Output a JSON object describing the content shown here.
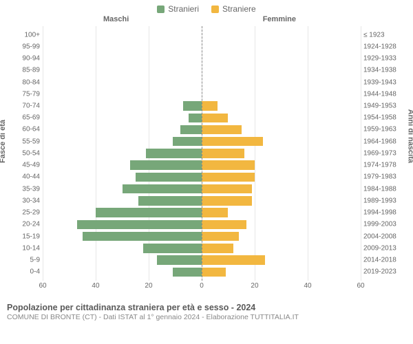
{
  "type": "population-pyramid",
  "legend": [
    {
      "label": "Stranieri",
      "color": "#77a779"
    },
    {
      "label": "Straniere",
      "color": "#f2b740"
    }
  ],
  "colors": {
    "male_bar": "#77a779",
    "female_bar": "#f2b740",
    "grid": "#e6e6e6",
    "center_axis": "#888888",
    "background": "#ffffff",
    "text": "#666666"
  },
  "section_headers": {
    "left": "Maschi",
    "right": "Femmine"
  },
  "y_axis_left_title": "Fasce di età",
  "y_axis_right_title": "Anni di nascita",
  "x_axis": {
    "max": 60,
    "ticks": [
      60,
      40,
      20,
      0,
      20,
      40,
      60
    ]
  },
  "age_groups": [
    {
      "age": "100+",
      "birth": "≤ 1923",
      "m": 0,
      "f": 0
    },
    {
      "age": "95-99",
      "birth": "1924-1928",
      "m": 0,
      "f": 0
    },
    {
      "age": "90-94",
      "birth": "1929-1933",
      "m": 0,
      "f": 0
    },
    {
      "age": "85-89",
      "birth": "1934-1938",
      "m": 0,
      "f": 0
    },
    {
      "age": "80-84",
      "birth": "1939-1943",
      "m": 0,
      "f": 0
    },
    {
      "age": "75-79",
      "birth": "1944-1948",
      "m": 0,
      "f": 0
    },
    {
      "age": "70-74",
      "birth": "1949-1953",
      "m": 7,
      "f": 6
    },
    {
      "age": "65-69",
      "birth": "1954-1958",
      "m": 5,
      "f": 10
    },
    {
      "age": "60-64",
      "birth": "1959-1963",
      "m": 8,
      "f": 15
    },
    {
      "age": "55-59",
      "birth": "1964-1968",
      "m": 11,
      "f": 23
    },
    {
      "age": "50-54",
      "birth": "1969-1973",
      "m": 21,
      "f": 16
    },
    {
      "age": "45-49",
      "birth": "1974-1978",
      "m": 27,
      "f": 20
    },
    {
      "age": "40-44",
      "birth": "1979-1983",
      "m": 25,
      "f": 20
    },
    {
      "age": "35-39",
      "birth": "1984-1988",
      "m": 30,
      "f": 19
    },
    {
      "age": "30-34",
      "birth": "1989-1993",
      "m": 24,
      "f": 19
    },
    {
      "age": "25-29",
      "birth": "1994-1998",
      "m": 40,
      "f": 10
    },
    {
      "age": "20-24",
      "birth": "1999-2003",
      "m": 47,
      "f": 17
    },
    {
      "age": "15-19",
      "birth": "2004-2008",
      "m": 45,
      "f": 14
    },
    {
      "age": "10-14",
      "birth": "2009-2013",
      "m": 22,
      "f": 12
    },
    {
      "age": "5-9",
      "birth": "2014-2018",
      "m": 17,
      "f": 24
    },
    {
      "age": "0-4",
      "birth": "2019-2023",
      "m": 11,
      "f": 9
    }
  ],
  "footer": {
    "title": "Popolazione per cittadinanza straniera per età e sesso - 2024",
    "subtitle": "COMUNE DI BRONTE (CT) - Dati ISTAT al 1° gennaio 2024 - Elaborazione TUTTITALIA.IT"
  },
  "style": {
    "bar_height_pct": 78,
    "font_family": "Arial",
    "tick_fontsize": 10,
    "label_fontsize": 10,
    "legend_fontsize": 12,
    "title_fontsize": 12.5
  }
}
